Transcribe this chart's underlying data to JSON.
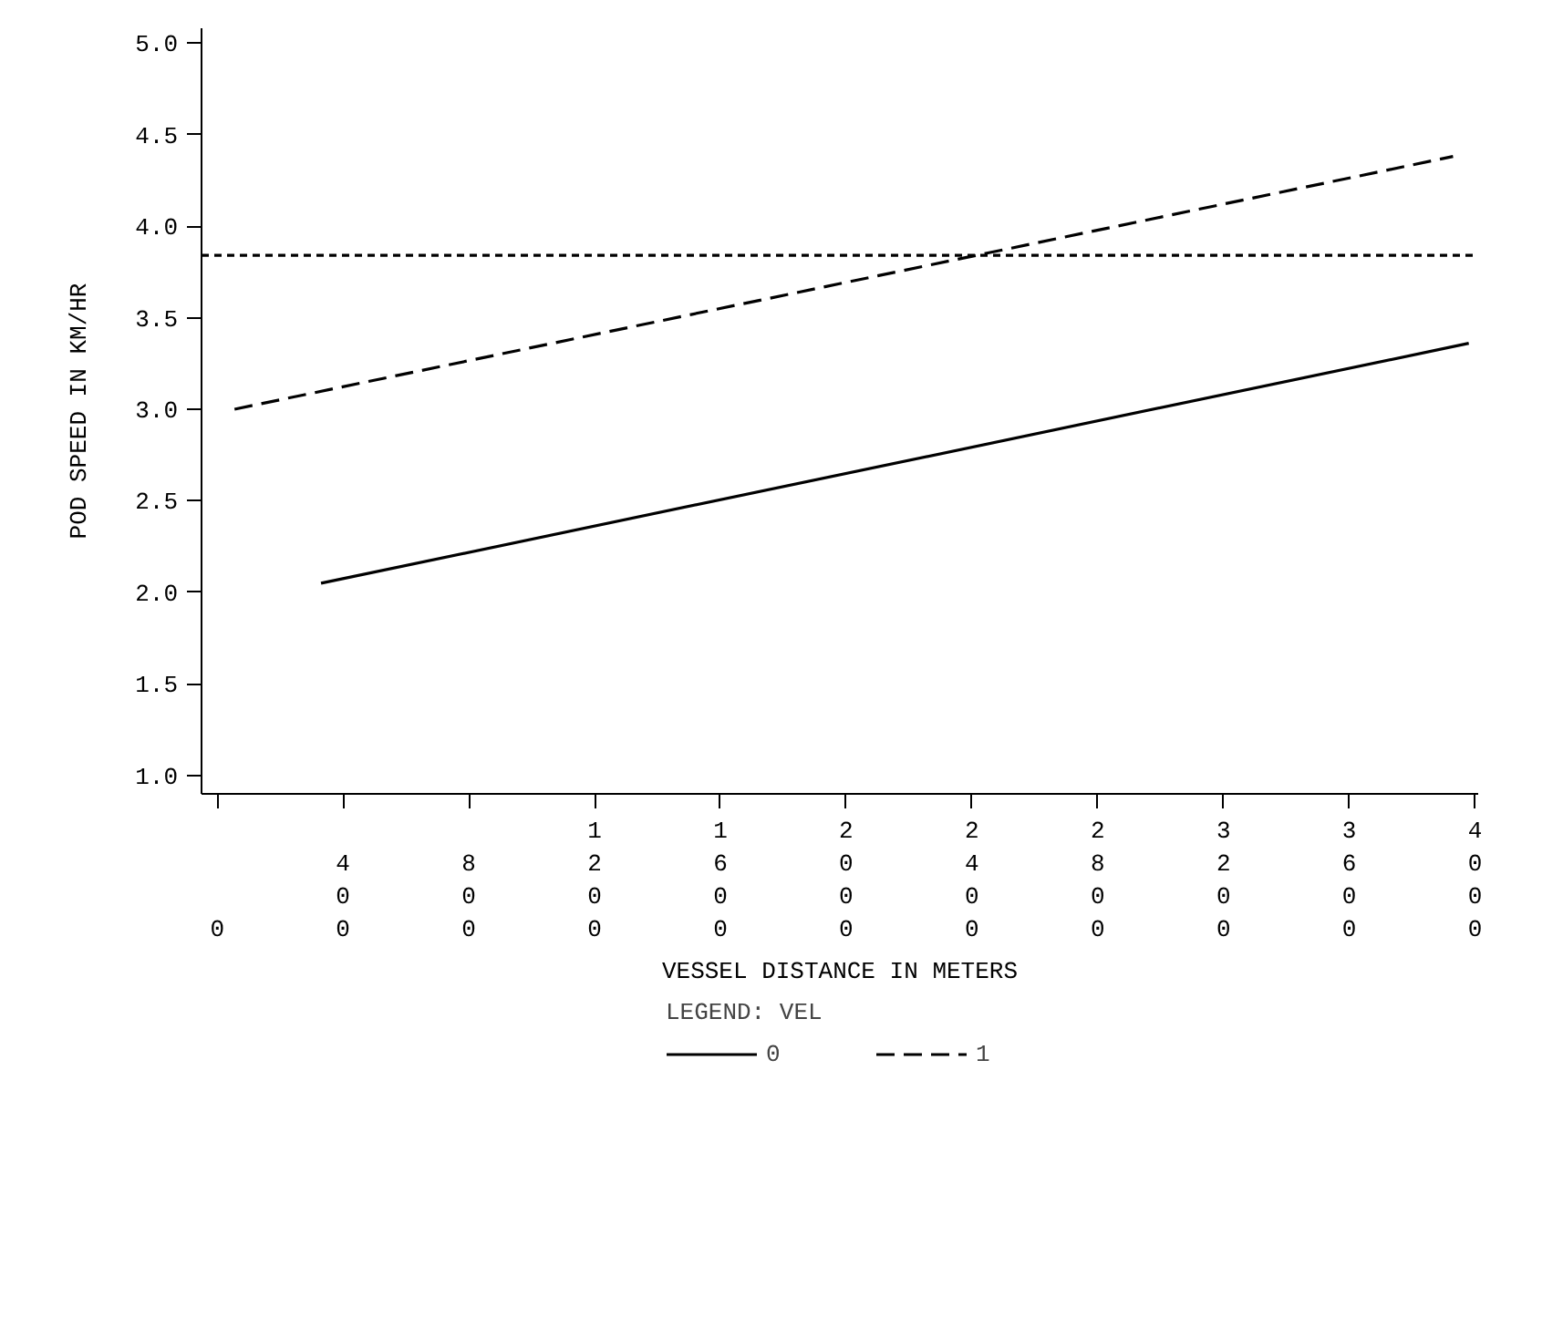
{
  "chart_data": {
    "type": "line",
    "xlabel": "VESSEL DISTANCE IN METERS",
    "ylabel": "POD SPEED IN KM/HR",
    "legend_title": "LEGEND: VEL",
    "legend": "bottom",
    "grid": false,
    "marker": "none",
    "xlim": [
      -50,
      4010
    ],
    "ylim": [
      0.9,
      5.08
    ],
    "xticks": [
      0,
      400,
      800,
      1200,
      1600,
      2000,
      2400,
      2800,
      3200,
      3600,
      4000
    ],
    "yticks": [
      {
        "value": 1.0,
        "label": "1.0"
      },
      {
        "value": 1.5,
        "label": "1.5"
      },
      {
        "value": 2.0,
        "label": "2.0"
      },
      {
        "value": 2.5,
        "label": "2.5"
      },
      {
        "value": 3.0,
        "label": "3.0"
      },
      {
        "value": 3.5,
        "label": "3.5"
      },
      {
        "value": 4.0,
        "label": "4.0"
      },
      {
        "value": 4.5,
        "label": "4.5"
      },
      {
        "value": 5.0,
        "label": "5.0"
      }
    ],
    "series": [
      {
        "name": "0",
        "color": "#000000",
        "line_style": "solid",
        "x": [
          330,
          3980
        ],
        "values": [
          2.05,
          3.36
        ]
      },
      {
        "name": "1",
        "color": "#000000",
        "line_style": "dashed",
        "x": [
          55,
          3930
        ],
        "values": [
          3.0,
          4.38
        ]
      }
    ],
    "ref_lines": [
      {
        "axis": "y",
        "value": 3.84,
        "line_style": "dotted",
        "color": "#000000"
      }
    ]
  }
}
